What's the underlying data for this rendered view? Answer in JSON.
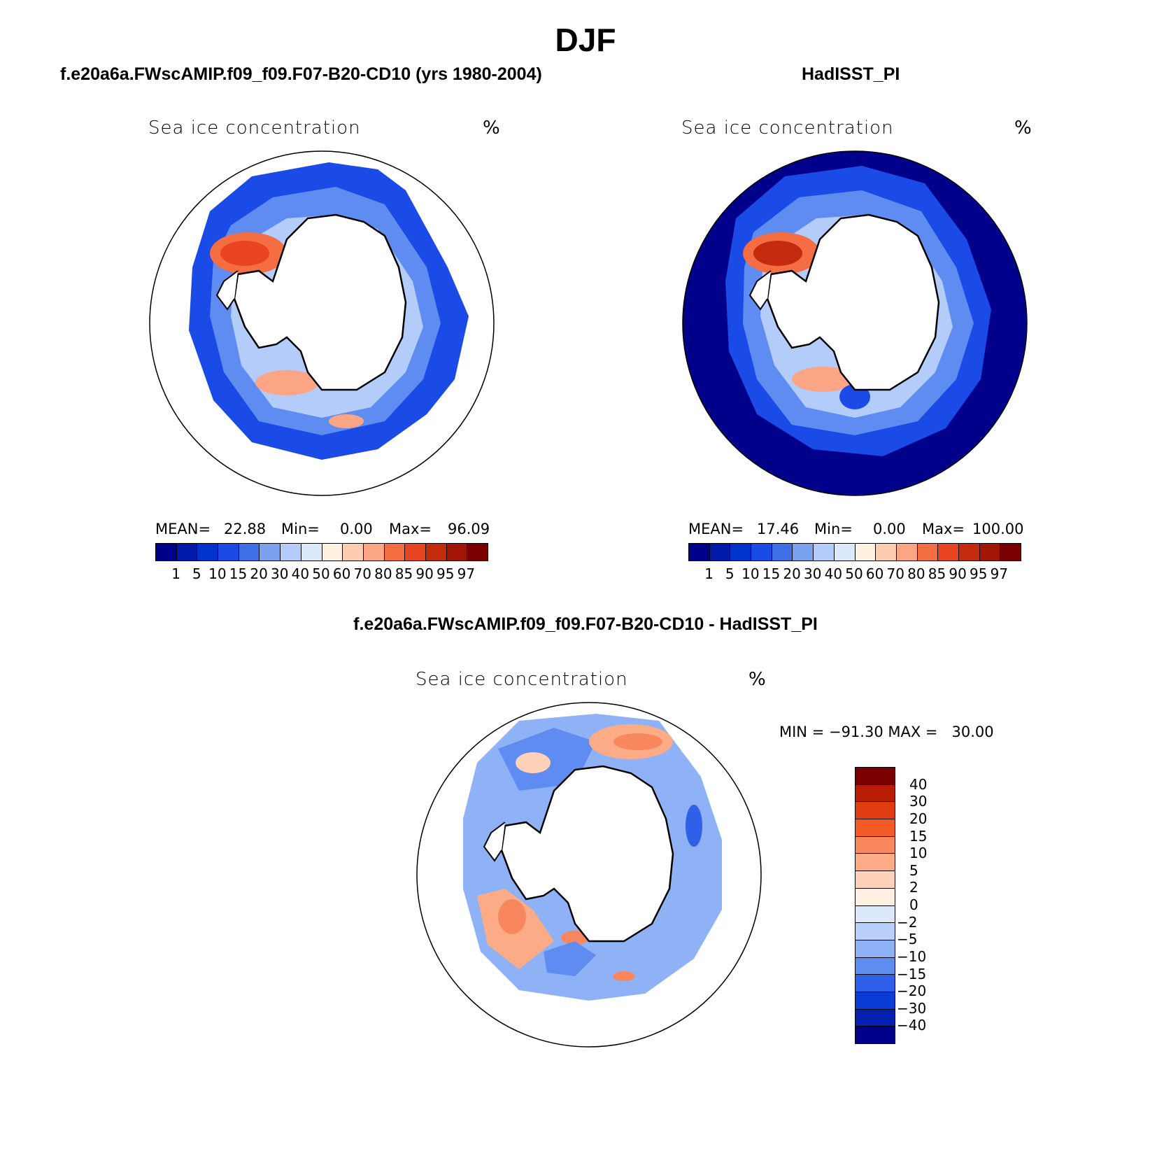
{
  "figure_title": "DJF",
  "panels": [
    {
      "title": "f.e20a6a.FWscAMIP.f09_f09.F07-B20-CD10 (yrs 1980-2004)",
      "variable": "Sea ice concentration",
      "unit": "%",
      "stats": {
        "mean_label": "MEAN=",
        "mean": "22.88",
        "min_label": "Min=",
        "min": "0.00",
        "max_label": "Max=",
        "max": "96.09"
      }
    },
    {
      "title": "HadISST_PI",
      "variable": "Sea ice concentration",
      "unit": "%",
      "stats": {
        "mean_label": "MEAN=",
        "mean": "17.46",
        "min_label": "Min=",
        "min": "0.00",
        "max_label": "Max=",
        "max": "100.00"
      }
    },
    {
      "title": "f.e20a6a.FWscAMIP.f09_f09.F07-B20-CD10 - HadISST_PI",
      "variable": "Sea ice concentration",
      "unit": "%",
      "stats_text": "MIN = −91.30 MAX =   30.00"
    }
  ],
  "abs_colorbar": {
    "colors": [
      "#00008b",
      "#0019a8",
      "#0033cc",
      "#1a4be6",
      "#3f6ee6",
      "#7aa0f0",
      "#b3ccfa",
      "#dce9fc",
      "#fff0e0",
      "#fdcdb0",
      "#fba584",
      "#f46d43",
      "#e84420",
      "#c42a0e",
      "#a31507",
      "#7a0000"
    ],
    "ticks": [
      "1",
      "5",
      "10",
      "15",
      "20",
      "30",
      "40",
      "50",
      "60",
      "70",
      "80",
      "85",
      "90",
      "95",
      "97"
    ]
  },
  "diff_colorbar": {
    "colors": [
      "#7a0000",
      "#b81d04",
      "#df3c10",
      "#f45a25",
      "#f8875e",
      "#fbab85",
      "#fdd2b8",
      "#fff0e2",
      "#dce9fc",
      "#b8cffa",
      "#8fb2f6",
      "#5f8cf0",
      "#2f60ea",
      "#0a3dd6",
      "#0520b0",
      "#00008b"
    ],
    "ticks": [
      "40",
      "30",
      "20",
      "15",
      "10",
      "5",
      "2",
      "0",
      "−2",
      "−5",
      "−10",
      "−15",
      "−20",
      "−30",
      "−40"
    ]
  },
  "map_data": {
    "projection": "south-polar-stereographic",
    "region": "Antarctica / Southern Ocean",
    "season": "DJF",
    "ocean_fill": {
      "panel_1": "#1a4be6",
      "panel_2": "#00008b",
      "panel_3": "#8fb2f6"
    }
  }
}
